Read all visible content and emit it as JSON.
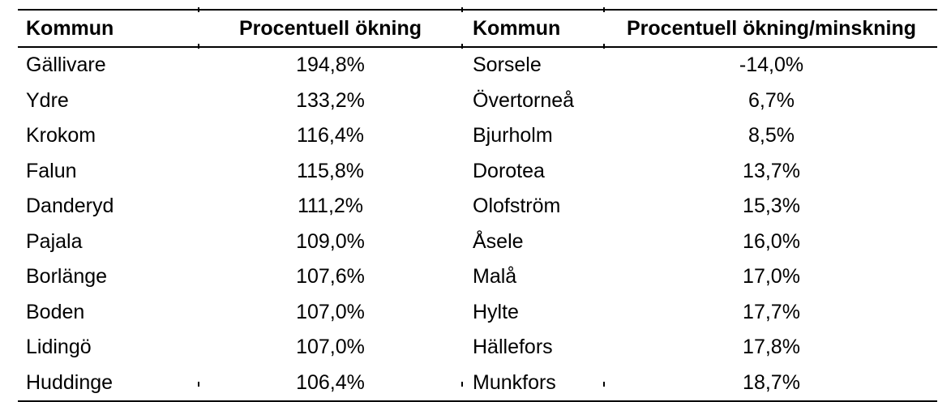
{
  "page": {
    "background_color": "#ffffff",
    "text_color": "#000000",
    "rule_color": "#000000"
  },
  "table": {
    "headers": [
      {
        "label": "Kommun",
        "align": "left"
      },
      {
        "label": "Procentuell ökning",
        "align": "center"
      },
      {
        "label": "Kommun",
        "align": "left"
      },
      {
        "label": "Procentuell ökning/minskning",
        "align": "center"
      }
    ],
    "rows": [
      [
        "Gällivare",
        "194,8%",
        "Sorsele",
        "-14,0%"
      ],
      [
        "Ydre",
        "133,2%",
        "Övertorneå",
        "6,7%"
      ],
      [
        "Krokom",
        "116,4%",
        "Bjurholm",
        "8,5%"
      ],
      [
        "Falun",
        "115,8%",
        "Dorotea",
        "13,7%"
      ],
      [
        "Danderyd",
        "111,2%",
        "Olofström",
        "15,3%"
      ],
      [
        "Pajala",
        "109,0%",
        "Åsele",
        "16,0%"
      ],
      [
        "Borlänge",
        "107,6%",
        "Malå",
        "17,0%"
      ],
      [
        "Boden",
        "107,0%",
        "Hylte",
        "17,7%"
      ],
      [
        "Lidingö",
        "107,0%",
        "Hällefors",
        "17,8%"
      ],
      [
        "Huddinge",
        "106,4%",
        "Munkfors",
        "18,7%"
      ]
    ]
  },
  "chart_data": {
    "type": "table",
    "columns": [
      "Kommun",
      "Procentuell ökning",
      "Kommun",
      "Procentuell ökning/minskning"
    ],
    "rows": [
      [
        "Gällivare",
        "194,8%",
        "Sorsele",
        "-14,0%"
      ],
      [
        "Ydre",
        "133,2%",
        "Övertorneå",
        "6,7%"
      ],
      [
        "Krokom",
        "116,4%",
        "Bjurholm",
        "8,5%"
      ],
      [
        "Falun",
        "115,8%",
        "Dorotea",
        "13,7%"
      ],
      [
        "Danderyd",
        "111,2%",
        "Olofström",
        "15,3%"
      ],
      [
        "Pajala",
        "109,0%",
        "Åsele",
        "16,0%"
      ],
      [
        "Borlänge",
        "107,6%",
        "Malå",
        "17,0%"
      ],
      [
        "Boden",
        "107,0%",
        "Hylte",
        "17,7%"
      ],
      [
        "Lidingö",
        "107,0%",
        "Hällefors",
        "17,8%"
      ],
      [
        "Huddinge",
        "106,4%",
        "Munkfors",
        "18,7%"
      ]
    ]
  }
}
